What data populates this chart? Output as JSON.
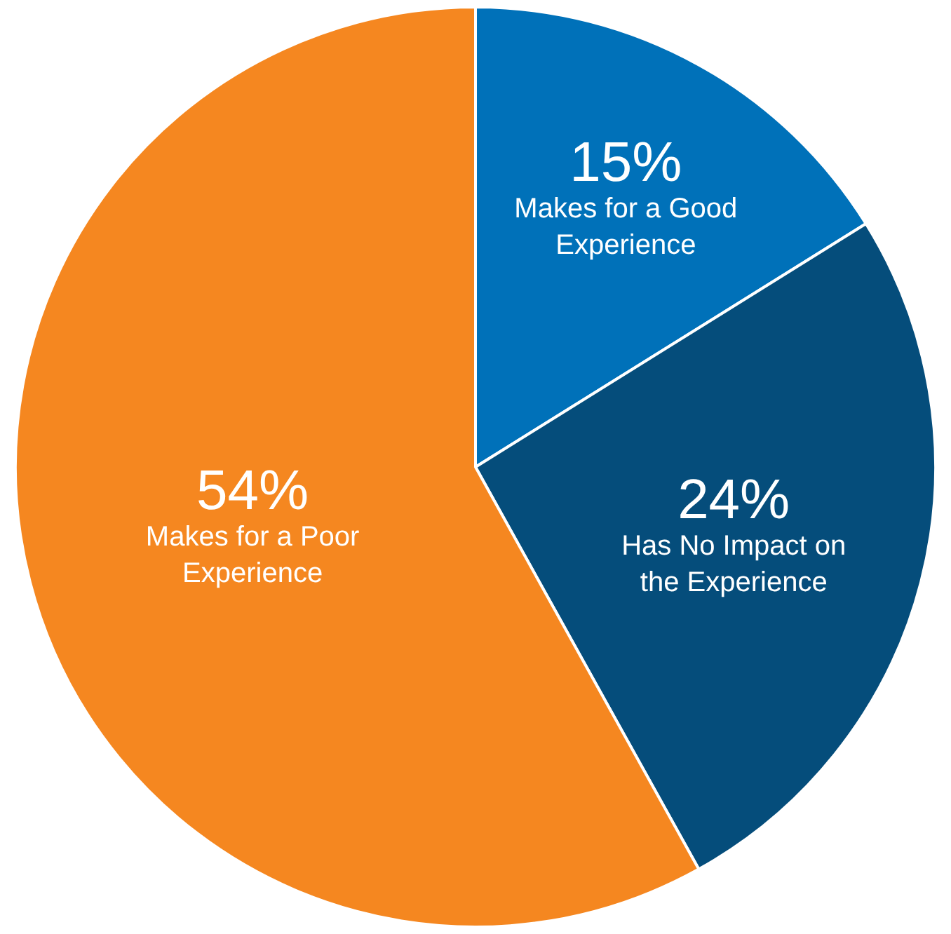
{
  "chart_data": {
    "type": "pie",
    "categories": [
      "Makes for a Good Experience",
      "Has No Impact on the Experience",
      "Makes for a Poor Experience"
    ],
    "values": [
      15,
      24,
      54
    ],
    "value_labels": [
      "15%",
      "24%",
      "54%"
    ],
    "colors": [
      "#0071b9",
      "#054d7b",
      "#f58720"
    ]
  }
}
